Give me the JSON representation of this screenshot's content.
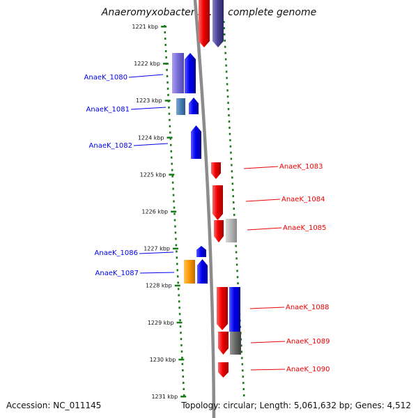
{
  "title": "Anaeromyxobacter sp. K, complete genome",
  "footer": {
    "accession": "Accession: NC_011145",
    "summary": "Topology: circular; Length: 5,061,632 bp; Genes: 4,512"
  },
  "scale": {
    "unit": "kbp",
    "ticks": [
      "1221 kbp",
      "1222 kbp",
      "1223 kbp",
      "1224 kbp",
      "1225 kbp",
      "1226 kbp",
      "1227 kbp",
      "1228 kbp",
      "1229 kbp",
      "1230 kbp",
      "1231 kbp"
    ]
  },
  "colors": {
    "forward_gene": "#0000ee",
    "reverse_gene": "#ee0000",
    "scale_dots": "#1a7a1a",
    "backbone": "#8c8c8c"
  },
  "genes": [
    {
      "name": "AnaeK_1080",
      "color": "#0000ee"
    },
    {
      "name": "AnaeK_1081",
      "color": "#0000ee"
    },
    {
      "name": "AnaeK_1082",
      "color": "#0000ee"
    },
    {
      "name": "AnaeK_1083",
      "color": "#ee0000"
    },
    {
      "name": "AnaeK_1084",
      "color": "#ee0000"
    },
    {
      "name": "AnaeK_1085",
      "color": "#ee0000"
    },
    {
      "name": "AnaeK_1086",
      "color": "#0000ee"
    },
    {
      "name": "AnaeK_1087",
      "color": "#0000ee"
    },
    {
      "name": "AnaeK_1088",
      "color": "#ee0000"
    },
    {
      "name": "AnaeK_1089",
      "color": "#ee0000"
    },
    {
      "name": "AnaeK_1090",
      "color": "#ee0000"
    }
  ]
}
